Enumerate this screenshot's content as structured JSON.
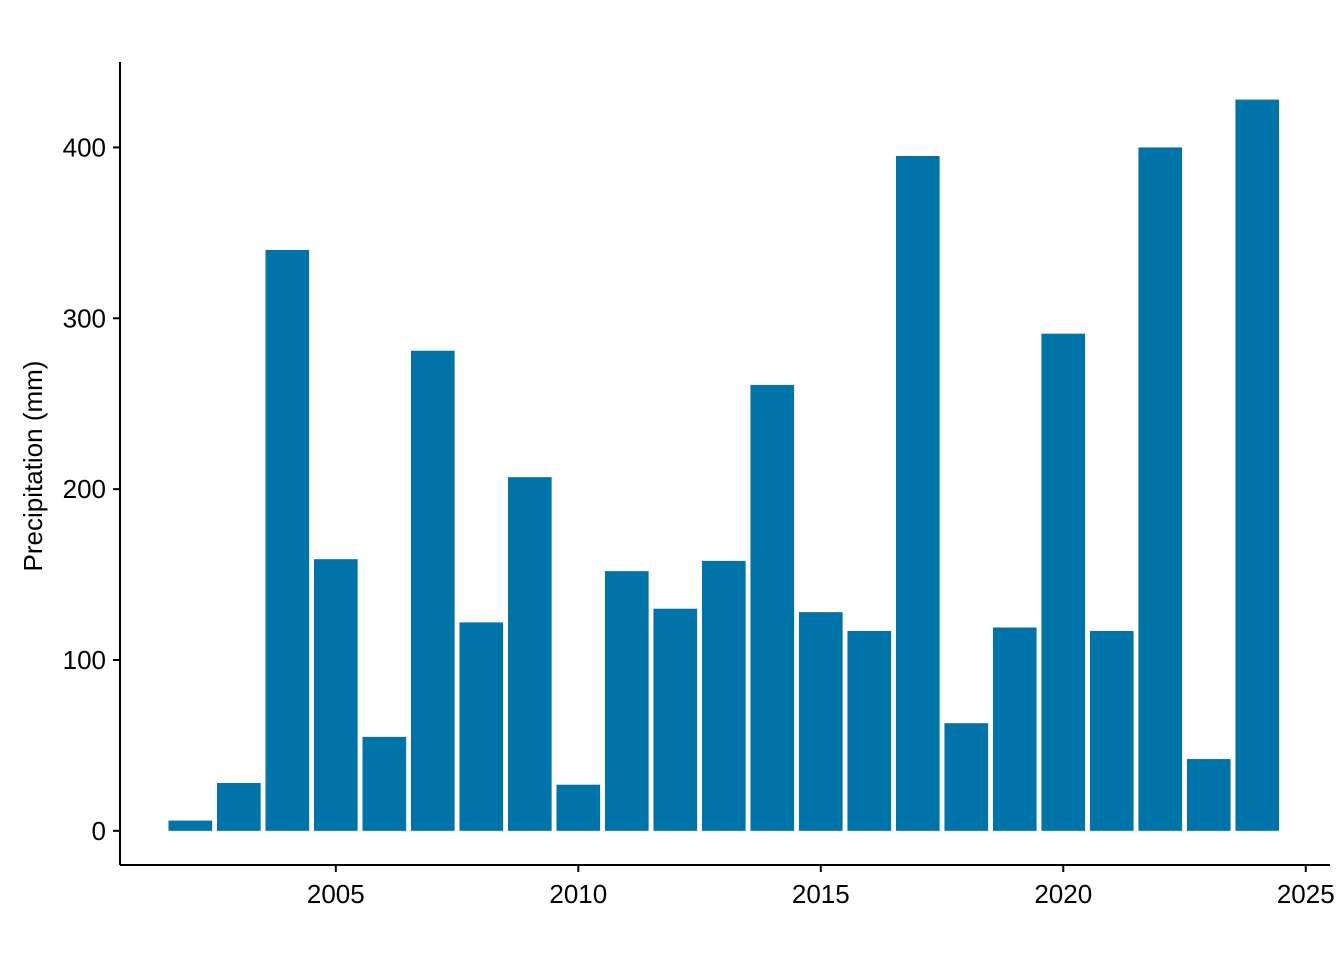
{
  "chart_data": {
    "type": "bar",
    "title": "",
    "xlabel": "",
    "ylabel": "Precipitation (mm)",
    "x": [
      2002,
      2003,
      2004,
      2005,
      2006,
      2007,
      2008,
      2009,
      2010,
      2011,
      2012,
      2013,
      2014,
      2015,
      2016,
      2017,
      2018,
      2019,
      2020,
      2021,
      2022,
      2023,
      2024
    ],
    "values": [
      6,
      28,
      340,
      159,
      55,
      281,
      122,
      207,
      27,
      152,
      130,
      158,
      261,
      128,
      117,
      395,
      63,
      119,
      291,
      117,
      400,
      42,
      428
    ],
    "xlim": [
      2000.55,
      2025.5
    ],
    "ylim": [
      -20,
      450
    ],
    "xticks": [
      2005,
      2010,
      2015,
      2020,
      2025
    ],
    "yticks": [
      0,
      100,
      200,
      300,
      400
    ],
    "grid": false,
    "bar_color": "#0073A8"
  }
}
